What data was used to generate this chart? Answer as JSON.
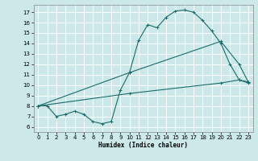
{
  "xlabel": "Humidex (Indice chaleur)",
  "bg_color": "#cce8e8",
  "grid_color": "#b0d0d0",
  "line_color": "#1a6b6b",
  "xlim": [
    -0.5,
    23.5
  ],
  "ylim": [
    5.5,
    17.7
  ],
  "xticks": [
    0,
    1,
    2,
    3,
    4,
    5,
    6,
    7,
    8,
    9,
    10,
    11,
    12,
    13,
    14,
    15,
    16,
    17,
    18,
    19,
    20,
    21,
    22,
    23
  ],
  "yticks": [
    6,
    7,
    8,
    9,
    10,
    11,
    12,
    13,
    14,
    15,
    16,
    17
  ],
  "curve1_x": [
    0,
    1,
    2,
    3,
    4,
    5,
    6,
    7,
    8,
    9,
    10,
    11,
    12,
    13,
    14,
    15,
    16,
    17,
    18,
    19,
    20,
    21,
    22,
    23
  ],
  "curve1_y": [
    8.0,
    8.0,
    7.0,
    7.2,
    7.5,
    7.2,
    6.5,
    6.3,
    6.5,
    9.5,
    11.2,
    14.3,
    15.8,
    15.5,
    16.5,
    17.1,
    17.2,
    17.0,
    16.2,
    15.2,
    14.0,
    12.0,
    10.5,
    10.2
  ],
  "curve2_x": [
    0,
    10,
    20,
    22,
    23
  ],
  "curve2_y": [
    8.0,
    11.2,
    14.2,
    12.0,
    10.3
  ],
  "curve3_x": [
    0,
    10,
    20,
    22,
    23
  ],
  "curve3_y": [
    8.0,
    9.2,
    10.2,
    10.5,
    10.3
  ]
}
